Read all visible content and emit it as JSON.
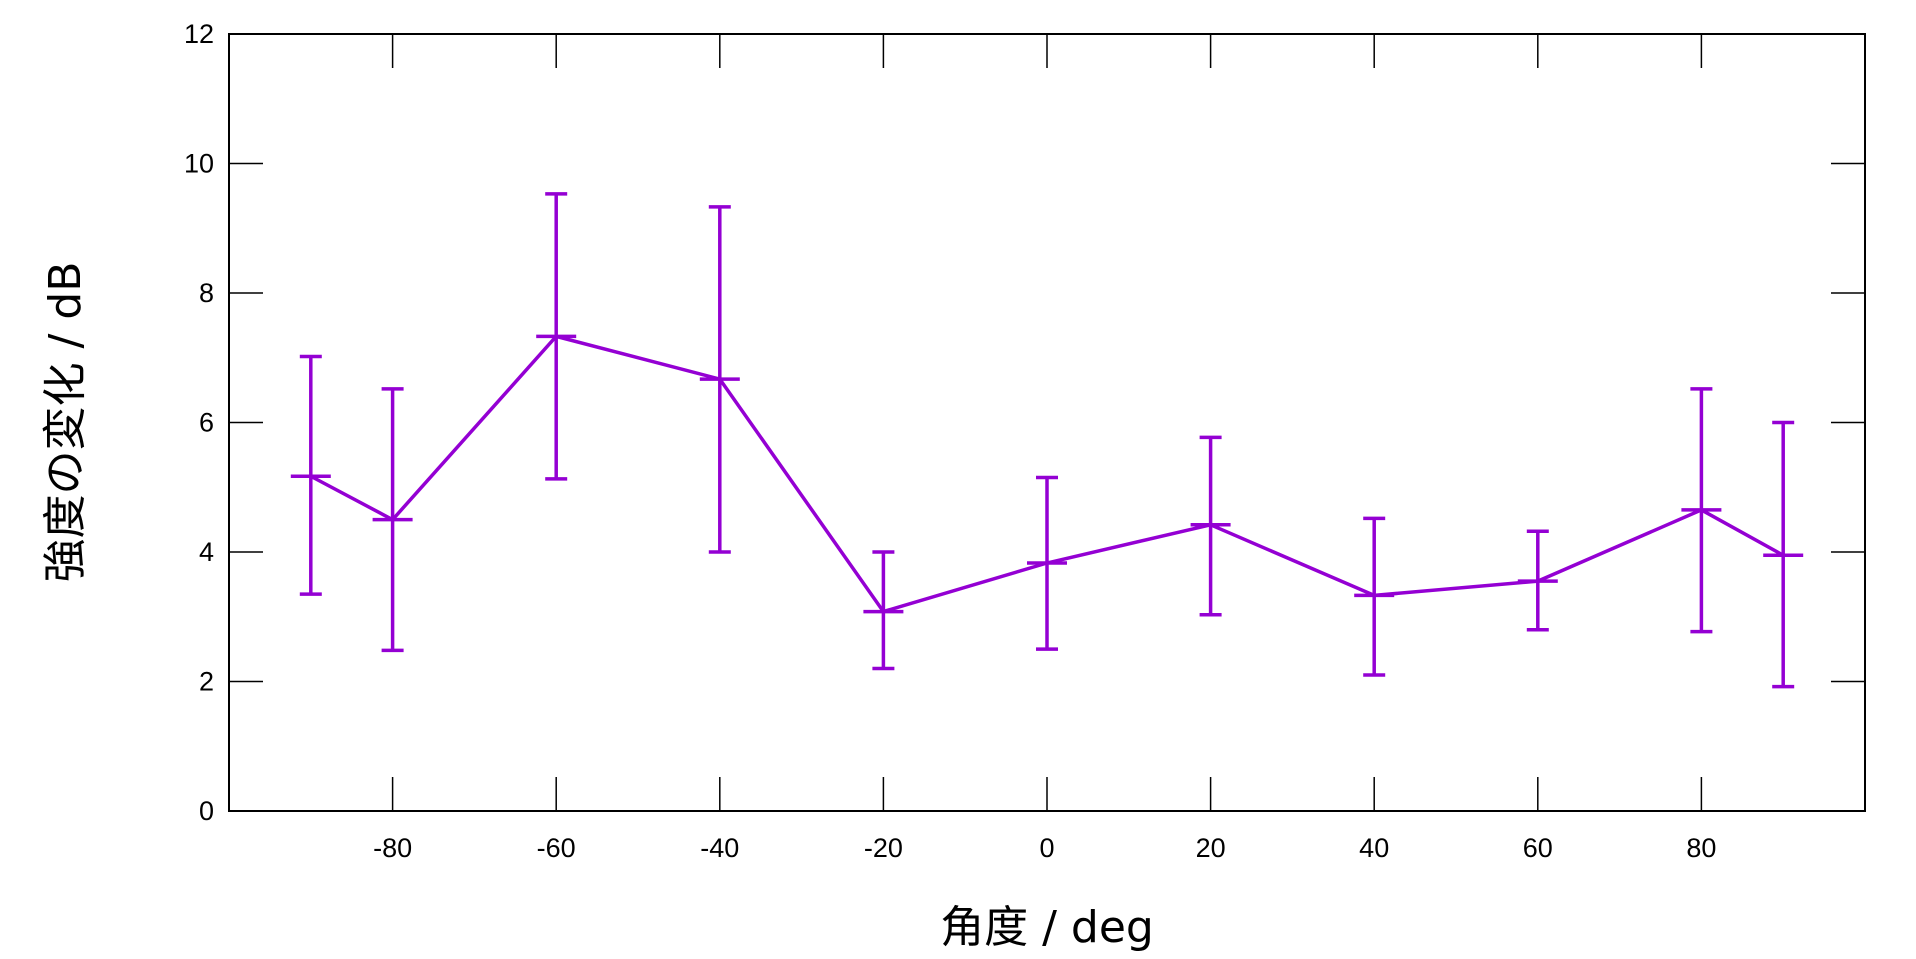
{
  "chart_data": {
    "type": "line",
    "title": "",
    "xlabel": "角度 / deg",
    "ylabel": "強度の変化 / dB",
    "xlim": [
      -100,
      100
    ],
    "ylim": [
      0,
      12
    ],
    "xticks": [
      -80,
      -60,
      -40,
      -20,
      0,
      20,
      40,
      60,
      80
    ],
    "yticks": [
      0,
      2,
      4,
      6,
      8,
      10,
      12
    ],
    "xtick_labels": [
      "-80",
      "-60",
      "-40",
      "-20",
      "0",
      "20",
      "40",
      "60",
      "80"
    ],
    "ytick_labels": [
      "0",
      "2",
      "4",
      "6",
      "8",
      "10",
      "12"
    ],
    "grid": false,
    "legend": "none",
    "series": [
      {
        "name": "強度の変化",
        "color": "#9400d3",
        "x": [
          -90,
          -80,
          -60,
          -40,
          -20,
          0,
          20,
          40,
          60,
          80,
          90
        ],
        "y": [
          5.17,
          4.5,
          7.33,
          6.67,
          3.08,
          3.83,
          4.42,
          3.33,
          3.55,
          4.65,
          3.95
        ],
        "y_low": [
          3.35,
          2.48,
          5.13,
          4.0,
          2.2,
          2.5,
          3.03,
          2.1,
          2.8,
          2.77,
          1.92
        ],
        "y_high": [
          7.02,
          6.52,
          9.53,
          9.33,
          4.0,
          5.15,
          5.77,
          4.52,
          4.32,
          6.52,
          6.0
        ]
      }
    ]
  }
}
